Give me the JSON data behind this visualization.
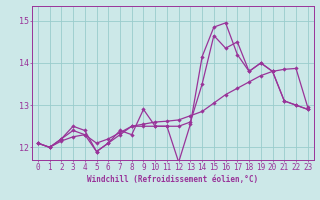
{
  "xlabel": "Windchill (Refroidissement éolien,°C)",
  "bg_color": "#cce8e8",
  "grid_color": "#99cccc",
  "line_color": "#993399",
  "x_values": [
    0,
    1,
    2,
    3,
    4,
    5,
    6,
    7,
    8,
    9,
    10,
    11,
    12,
    13,
    14,
    15,
    16,
    17,
    18,
    19,
    20,
    21,
    22,
    23
  ],
  "series1": [
    12.1,
    12.0,
    12.2,
    12.5,
    12.4,
    11.9,
    12.1,
    12.4,
    12.3,
    12.9,
    12.5,
    12.5,
    11.65,
    12.55,
    14.15,
    14.85,
    14.95,
    14.2,
    13.8,
    14.0,
    13.8,
    13.1,
    13.0,
    12.9
  ],
  "series2": [
    12.1,
    12.0,
    12.15,
    12.25,
    12.3,
    12.1,
    12.2,
    12.35,
    12.5,
    12.55,
    12.6,
    12.62,
    12.65,
    12.75,
    12.85,
    13.05,
    13.25,
    13.4,
    13.55,
    13.7,
    13.8,
    13.85,
    13.87,
    12.95
  ],
  "series3": [
    12.1,
    12.0,
    12.2,
    12.4,
    12.3,
    11.9,
    12.1,
    12.3,
    12.5,
    12.5,
    12.5,
    12.5,
    12.5,
    12.6,
    13.5,
    14.65,
    14.35,
    14.5,
    13.8,
    14.0,
    13.8,
    13.1,
    13.0,
    12.9
  ],
  "ylim_min": 11.7,
  "ylim_max": 15.35,
  "yticks": [
    12,
    13,
    14,
    15
  ],
  "xticks": [
    0,
    1,
    2,
    3,
    4,
    5,
    6,
    7,
    8,
    9,
    10,
    11,
    12,
    13,
    14,
    15,
    16,
    17,
    18,
    19,
    20,
    21,
    22,
    23
  ],
  "tick_fontsize": 5.5,
  "xlabel_fontsize": 5.5,
  "ylabel_fontsize": 6.0,
  "linewidth": 0.9,
  "markersize": 2.2
}
